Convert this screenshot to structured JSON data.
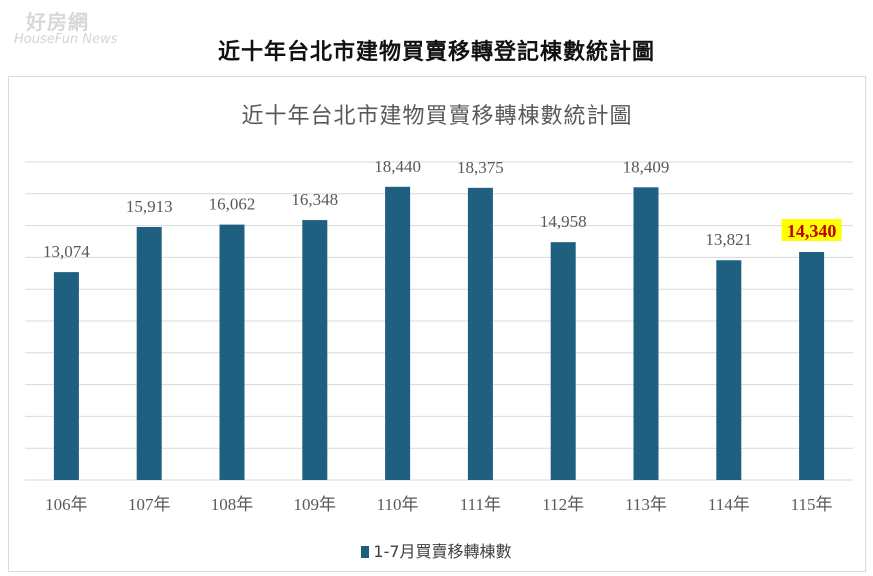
{
  "logo": {
    "text_cn": "好房網",
    "text_en": "HouseFun News"
  },
  "page_title": "近十年台北市建物買賣移轉登記棟數統計圖",
  "chart_data": {
    "type": "bar",
    "title": "近十年台北市建物買賣移轉棟數統計圖",
    "xlabel": "",
    "ylabel": "",
    "categories": [
      "106年",
      "107年",
      "108年",
      "109年",
      "110年",
      "111年",
      "112年",
      "113年",
      "114年",
      "115年"
    ],
    "series": [
      {
        "name": "1-7月買賣移轉棟數",
        "values": [
          13074,
          15913,
          16062,
          16348,
          18440,
          18375,
          14958,
          18409,
          13821,
          14340
        ],
        "labels": [
          "13,074",
          "15,913",
          "16,062",
          "16,348",
          "18,440",
          "18,375",
          "14,958",
          "18,409",
          "13,821",
          "14,340"
        ]
      }
    ],
    "ylim": [
      0,
      20000
    ],
    "grid": true,
    "legend_position": "bottom",
    "highlighted_category": "115年",
    "bar_color": "#1f5f80",
    "highlight_label_color": "#c00000",
    "highlight_background": "#ffff00"
  }
}
